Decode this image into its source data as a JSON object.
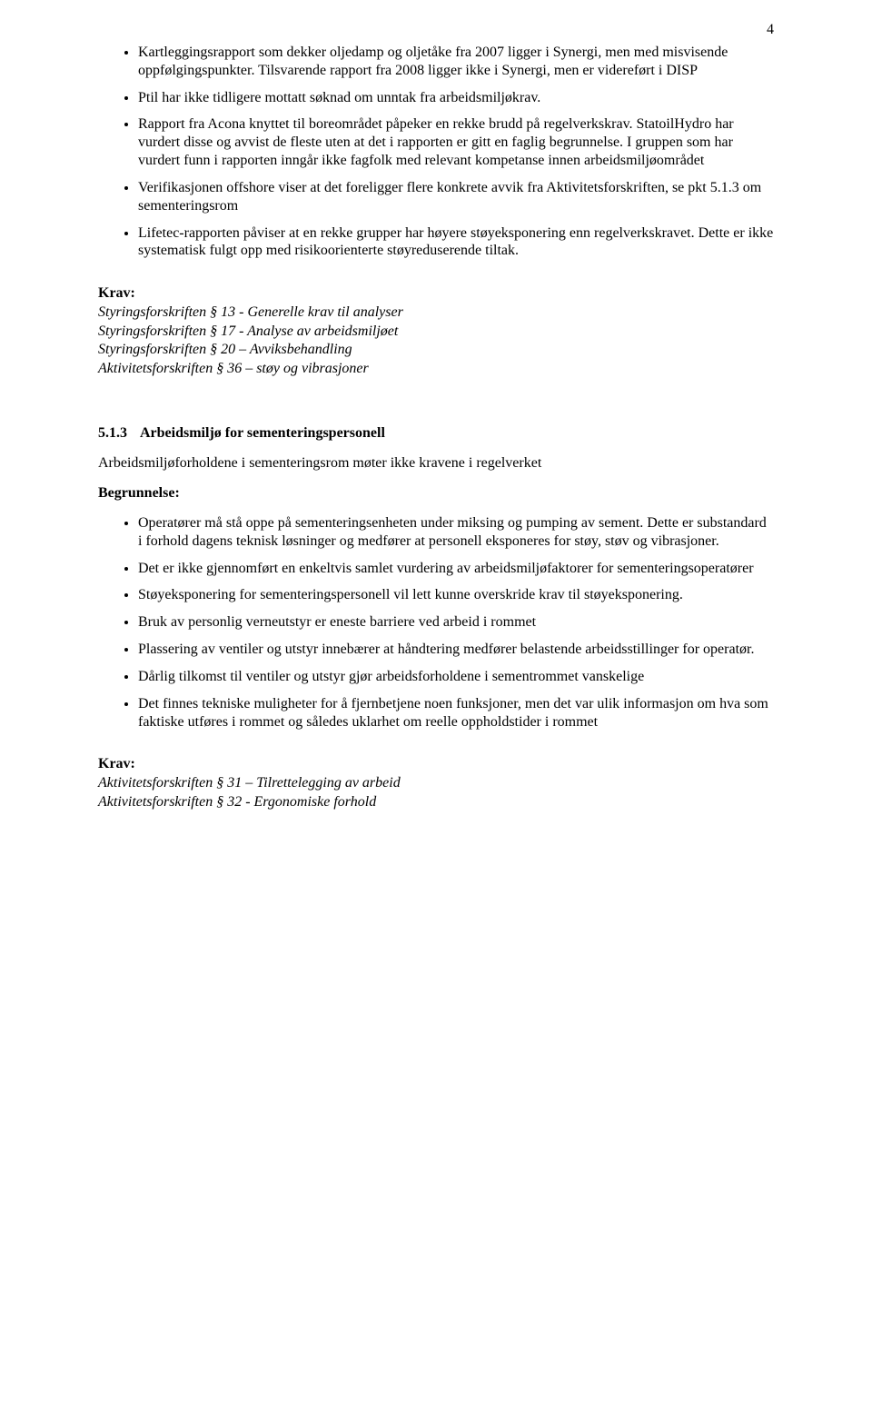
{
  "pageNumber": "4",
  "topList": [
    "Kartleggingsrapport som dekker oljedamp og oljetåke fra 2007 ligger i Synergi, men med misvisende oppfølgingspunkter. Tilsvarende rapport fra 2008 ligger ikke i Synergi, men er videreført i DISP",
    "Ptil har ikke tidligere mottatt søknad om unntak fra arbeidsmiljøkrav.",
    "Rapport fra Acona knyttet til boreområdet påpeker en rekke brudd på regelverkskrav. StatoilHydro har vurdert disse og avvist de fleste uten at det i rapporten er gitt en faglig begrunnelse. I gruppen som har vurdert funn i rapporten inngår ikke fagfolk med relevant kompetanse innen arbeidsmiljøområdet",
    "Verifikasjonen offshore viser at det foreligger flere konkrete avvik fra Aktivitetsforskriften, se pkt 5.1.3 om sementeringsrom",
    "Lifetec-rapporten påviser at en rekke grupper har høyere støyeksponering enn regelverkskravet. Dette er ikke systematisk fulgt opp med risikoorienterte støyreduserende tiltak."
  ],
  "krav1": {
    "label": "Krav:",
    "lines": [
      "Styringsforskriften § 13  - Generelle krav til analyser",
      "Styringsforskriften § 17  - Analyse av arbeidsmiljøet",
      "Styringsforskriften § 20 – Avviksbehandling",
      "Aktivitetsforskriften § 36 – støy og vibrasjoner"
    ]
  },
  "section": {
    "number": "5.1.3",
    "title": "Arbeidsmiljø for sementeringspersonell"
  },
  "introPara": "Arbeidsmiljøforholdene i sementeringsrom møter ikke kravene i regelverket",
  "begrunnelseLabel": "Begrunnelse:",
  "begrunnelseList": [
    "Operatører må stå oppe på sementeringsenheten under miksing og pumping av sement. Dette er substandard i forhold dagens teknisk løsninger og medfører at personell eksponeres for støy, støv og vibrasjoner.",
    "Det er ikke gjennomført en enkeltvis samlet vurdering av arbeidsmiljøfaktorer for sementeringsoperatører",
    "Støyeksponering for sementeringspersonell vil lett kunne overskride krav til støyeksponering.",
    "Bruk av personlig verneutstyr er eneste barriere ved arbeid i rommet",
    "Plassering av ventiler og utstyr innebærer at håndtering medfører belastende arbeidsstillinger for operatør.",
    "Dårlig tilkomst til ventiler og utstyr gjør arbeidsforholdene i sementrommet vanskelige",
    "Det finnes tekniske muligheter for å fjernbetjene noen funksjoner, men det var ulik informasjon om hva som faktiske utføres i rommet og således uklarhet om reelle oppholdstider i rommet"
  ],
  "krav2": {
    "label": "Krav:",
    "lines": [
      "Aktivitetsforskriften § 31 – Tilrettelegging av arbeid",
      "Aktivitetsforskriften § 32 - Ergonomiske forhold"
    ]
  }
}
